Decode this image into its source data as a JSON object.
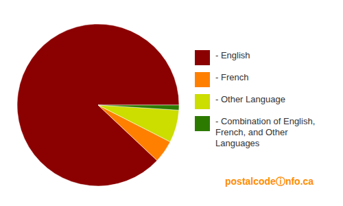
{
  "chart_data": {
    "type": "pie",
    "categories": [
      "- English",
      "- French",
      "- Other Language",
      "- Combination of English,\nFrench, and Other\nLanguages"
    ],
    "values": [
      88.0,
      4.5,
      6.5,
      1.0
    ],
    "colors": [
      "#8b0000",
      "#ff8000",
      "#ccdd00",
      "#2d7a00"
    ],
    "legend": "right",
    "annotations": [
      {
        "text": "postalcodeⓘnfo.ca",
        "color": "#ff8c00"
      }
    ]
  }
}
